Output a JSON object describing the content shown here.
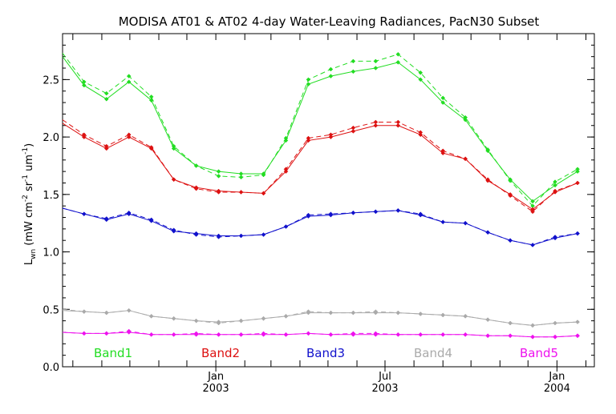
{
  "chart_data": {
    "type": "line",
    "title": "MODISA AT01 & AT02 4-day Water-Leaving Radiances, PacN30 Subset",
    "ylabel": {
      "main": "L",
      "sub": "wn",
      "units_open": " (mW cm",
      "exp1": "-2",
      "mid": " sr",
      "exp2": "-1",
      "end": " um",
      "exp3": "-1",
      "close": ")"
    },
    "ylim": [
      0.0,
      2.9
    ],
    "xlim": [
      "2002-07-21",
      "2004-02-10"
    ],
    "y_ticks": [
      "0.0",
      "0.5",
      "1.0",
      "1.5",
      "2.0",
      "2.5"
    ],
    "x_tick_labels": [
      {
        "x": "2003-01-01",
        "line1": "Jan",
        "line2": "2003"
      },
      {
        "x": "2003-07-01",
        "line1": "Jul",
        "line2": "2003"
      },
      {
        "x": "2004-01-01",
        "line1": "Jan",
        "line2": "2004"
      }
    ],
    "x_minor_ticks": [
      "2002-08-01",
      "2002-09-01",
      "2002-10-01",
      "2002-11-01",
      "2002-12-01",
      "2003-01-01",
      "2003-02-01",
      "2003-03-01",
      "2003-04-01",
      "2003-05-01",
      "2003-06-01",
      "2003-07-01",
      "2003-08-01",
      "2003-09-01",
      "2003-10-01",
      "2003-11-01",
      "2003-12-01",
      "2004-01-01",
      "2004-02-01"
    ],
    "x": [
      "2002-07-20",
      "2002-08-13",
      "2002-09-06",
      "2002-09-30",
      "2002-10-24",
      "2002-11-17",
      "2002-12-11",
      "2003-01-04",
      "2003-01-28",
      "2003-02-21",
      "2003-03-17",
      "2003-04-10",
      "2003-05-04",
      "2003-05-28",
      "2003-06-21",
      "2003-07-15",
      "2003-08-08",
      "2003-09-01",
      "2003-09-25",
      "2003-10-19",
      "2003-11-12",
      "2003-12-06",
      "2003-12-30",
      "2004-01-23"
    ],
    "series": [
      {
        "name": "Band1",
        "color": "#22dd22",
        "values_at01": [
          2.7,
          2.45,
          2.33,
          2.48,
          2.32,
          1.9,
          1.75,
          1.7,
          1.68,
          1.68,
          1.97,
          2.46,
          2.53,
          2.57,
          2.6,
          2.65,
          2.5,
          2.3,
          2.15,
          1.88,
          1.63,
          1.44,
          1.58,
          1.7
        ],
        "values_at02": [
          2.73,
          2.48,
          2.38,
          2.53,
          2.35,
          1.92,
          1.75,
          1.66,
          1.65,
          1.67,
          1.99,
          2.5,
          2.59,
          2.66,
          2.66,
          2.72,
          2.56,
          2.34,
          2.17,
          1.89,
          1.62,
          1.4,
          1.61,
          1.72
        ]
      },
      {
        "name": "Band2",
        "color": "#dd1111",
        "values_at01": [
          2.12,
          2.0,
          1.9,
          2.0,
          1.9,
          1.63,
          1.56,
          1.53,
          1.52,
          1.51,
          1.7,
          1.97,
          2.0,
          2.05,
          2.1,
          2.1,
          2.02,
          1.86,
          1.81,
          1.62,
          1.5,
          1.37,
          1.52,
          1.6
        ],
        "values_at02": [
          2.15,
          2.02,
          1.92,
          2.02,
          1.91,
          1.63,
          1.55,
          1.52,
          1.52,
          1.51,
          1.72,
          1.99,
          2.02,
          2.08,
          2.13,
          2.13,
          2.04,
          1.88,
          1.81,
          1.63,
          1.49,
          1.35,
          1.53,
          1.6
        ]
      },
      {
        "name": "Band3",
        "color": "#1111cc",
        "values_at01": [
          1.38,
          1.33,
          1.28,
          1.33,
          1.27,
          1.18,
          1.16,
          1.14,
          1.14,
          1.15,
          1.22,
          1.31,
          1.32,
          1.34,
          1.35,
          1.36,
          1.32,
          1.26,
          1.25,
          1.17,
          1.1,
          1.06,
          1.12,
          1.16
        ],
        "values_at02": [
          1.38,
          1.33,
          1.29,
          1.34,
          1.28,
          1.19,
          1.15,
          1.13,
          1.14,
          1.15,
          1.22,
          1.32,
          1.33,
          1.34,
          1.35,
          1.36,
          1.33,
          1.26,
          1.25,
          1.17,
          1.1,
          1.06,
          1.13,
          1.16
        ]
      },
      {
        "name": "Band4",
        "color": "#aaaaaa",
        "values_at01": [
          0.49,
          0.48,
          0.47,
          0.49,
          0.44,
          0.42,
          0.4,
          0.39,
          0.4,
          0.42,
          0.44,
          0.47,
          0.47,
          0.47,
          0.47,
          0.47,
          0.46,
          0.45,
          0.44,
          0.41,
          0.38,
          0.36,
          0.38,
          0.39
        ],
        "values_at02": [
          0.5,
          0.48,
          0.47,
          0.49,
          0.44,
          0.42,
          0.4,
          0.38,
          0.4,
          0.42,
          0.44,
          0.48,
          0.47,
          0.47,
          0.48,
          0.47,
          0.46,
          0.45,
          0.44,
          0.41,
          0.38,
          0.36,
          0.38,
          0.39
        ]
      },
      {
        "name": "Band5",
        "color": "#ee11ee",
        "values_at01": [
          0.3,
          0.29,
          0.29,
          0.3,
          0.28,
          0.28,
          0.28,
          0.28,
          0.28,
          0.28,
          0.28,
          0.29,
          0.28,
          0.28,
          0.28,
          0.28,
          0.28,
          0.28,
          0.28,
          0.27,
          0.27,
          0.26,
          0.26,
          0.27
        ],
        "values_at02": [
          0.3,
          0.29,
          0.29,
          0.31,
          0.28,
          0.28,
          0.29,
          0.28,
          0.28,
          0.29,
          0.28,
          0.29,
          0.28,
          0.29,
          0.29,
          0.28,
          0.28,
          0.28,
          0.28,
          0.27,
          0.27,
          0.26,
          0.26,
          0.27
        ]
      }
    ],
    "styles": {
      "at01": "solid",
      "at02": "dashed"
    },
    "grid": false,
    "legend": "bottom"
  }
}
